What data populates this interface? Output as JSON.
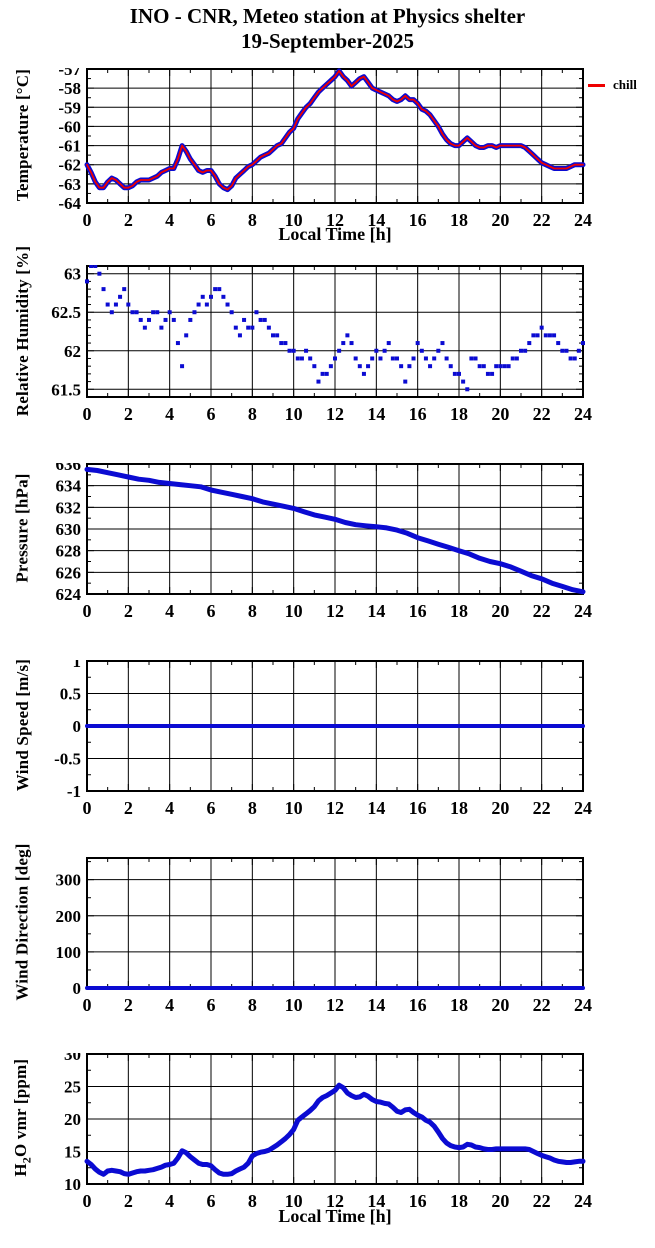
{
  "page": {
    "title_line1": "INO - CNR, Meteo station at Physics shelter",
    "title_line2": "19-September-2025"
  },
  "colors": {
    "background": "#ffffff",
    "frame": "#000000",
    "series_blue": "#0b0bd2",
    "chill_red": "#ee0000"
  },
  "chart_data": [
    {
      "id": "temperature",
      "type": "line",
      "title": "",
      "ylabel": "Temperature [°C]",
      "xlabel": "Local Time [h]",
      "xlim": [
        0,
        24
      ],
      "ylim": [
        -64,
        -57
      ],
      "xticks": [
        0,
        2,
        4,
        6,
        8,
        10,
        12,
        14,
        16,
        18,
        20,
        22,
        24
      ],
      "xtick_labels": [
        "0",
        "2",
        "4",
        "6",
        "8",
        "10",
        "12",
        "14",
        "16",
        "18",
        "20",
        "22",
        "24"
      ],
      "yticks": [
        -57,
        -58,
        -59,
        -60,
        -61,
        -62,
        -63,
        -64
      ],
      "ytick_labels": [
        "-57",
        "-58",
        "-59",
        "-60",
        "-61",
        "-62",
        "-63",
        "-64"
      ],
      "x_minor": 1,
      "y_minor": 0.5,
      "grid": true,
      "legend": {
        "label": "chill",
        "color": "#ee0000",
        "position": "right-of-plot"
      },
      "series": [
        {
          "name": "temperature",
          "color": "#0b0bd2",
          "width": 5,
          "style": "line",
          "x_start": 0,
          "x_step": 0.2,
          "values": [
            -62.0,
            -62.4,
            -62.9,
            -63.2,
            -63.2,
            -62.9,
            -62.7,
            -62.8,
            -63.0,
            -63.2,
            -63.2,
            -63.1,
            -62.9,
            -62.8,
            -62.8,
            -62.8,
            -62.7,
            -62.6,
            -62.4,
            -62.3,
            -62.2,
            -62.2,
            -61.7,
            -61.0,
            -61.3,
            -61.7,
            -62.0,
            -62.3,
            -62.4,
            -62.3,
            -62.3,
            -62.6,
            -63.0,
            -63.2,
            -63.3,
            -63.1,
            -62.7,
            -62.5,
            -62.3,
            -62.1,
            -62.0,
            -61.8,
            -61.6,
            -61.5,
            -61.4,
            -61.2,
            -61.0,
            -60.9,
            -60.6,
            -60.3,
            -60.1,
            -59.6,
            -59.3,
            -59.0,
            -58.8,
            -58.5,
            -58.2,
            -58.0,
            -57.8,
            -57.6,
            -57.4,
            -57.1,
            -57.4,
            -57.6,
            -57.9,
            -57.7,
            -57.5,
            -57.4,
            -57.7,
            -58.0,
            -58.1,
            -58.2,
            -58.3,
            -58.4,
            -58.6,
            -58.7,
            -58.6,
            -58.4,
            -58.6,
            -58.6,
            -58.8,
            -59.1,
            -59.2,
            -59.4,
            -59.7,
            -60.0,
            -60.4,
            -60.7,
            -60.9,
            -61.0,
            -61.0,
            -60.8,
            -60.6,
            -60.8,
            -61.0,
            -61.1,
            -61.1,
            -61.0,
            -61.0,
            -61.1,
            -61.0,
            -61.0,
            -61.0,
            -61.0,
            -61.0,
            -61.0,
            -61.1,
            -61.3,
            -61.5,
            -61.7,
            -61.9,
            -62.0,
            -62.1,
            -62.2,
            -62.2,
            -62.2,
            -62.2,
            -62.1,
            -62.0,
            -62.0,
            -62.0
          ]
        },
        {
          "name": "chill",
          "color": "#ee0000",
          "width": 1.8,
          "style": "line",
          "x_start": 0,
          "x_step": 0.2,
          "values": [
            -62.0,
            -62.4,
            -62.9,
            -63.2,
            -63.2,
            -62.9,
            -62.7,
            -62.8,
            -63.0,
            -63.2,
            -63.2,
            -63.1,
            -62.9,
            -62.8,
            -62.8,
            -62.8,
            -62.7,
            -62.6,
            -62.4,
            -62.3,
            -62.2,
            -62.2,
            -61.7,
            -61.0,
            -61.3,
            -61.7,
            -62.0,
            -62.3,
            -62.4,
            -62.3,
            -62.3,
            -62.6,
            -63.0,
            -63.2,
            -63.3,
            -63.1,
            -62.7,
            -62.5,
            -62.3,
            -62.1,
            -62.0,
            -61.8,
            -61.6,
            -61.5,
            -61.4,
            -61.2,
            -61.0,
            -60.9,
            -60.6,
            -60.3,
            -60.1,
            -59.6,
            -59.3,
            -59.0,
            -58.8,
            -58.5,
            -58.2,
            -58.0,
            -57.8,
            -57.6,
            -57.4,
            -57.1,
            -57.4,
            -57.6,
            -57.9,
            -57.7,
            -57.5,
            -57.4,
            -57.7,
            -58.0,
            -58.1,
            -58.2,
            -58.3,
            -58.4,
            -58.6,
            -58.7,
            -58.6,
            -58.4,
            -58.6,
            -58.6,
            -58.8,
            -59.1,
            -59.2,
            -59.4,
            -59.7,
            -60.0,
            -60.4,
            -60.7,
            -60.9,
            -61.0,
            -61.0,
            -60.8,
            -60.6,
            -60.8,
            -61.0,
            -61.1,
            -61.1,
            -61.0,
            -61.0,
            -61.1,
            -61.0,
            -61.0,
            -61.0,
            -61.0,
            -61.0,
            -61.0,
            -61.1,
            -61.3,
            -61.5,
            -61.7,
            -61.9,
            -62.0,
            -62.1,
            -62.2,
            -62.2,
            -62.2,
            -62.2,
            -62.1,
            -62.0,
            -62.0,
            -62.0
          ]
        }
      ]
    },
    {
      "id": "relative-humidity",
      "type": "scatter",
      "title": "",
      "ylabel": "Relative Humidity [%]",
      "xlabel": "",
      "xlim": [
        0,
        24
      ],
      "ylim": [
        61.4,
        63.1
      ],
      "xticks": [
        0,
        2,
        4,
        6,
        8,
        10,
        12,
        14,
        16,
        18,
        20,
        22,
        24
      ],
      "xtick_labels": [
        "0",
        "2",
        "4",
        "6",
        "8",
        "10",
        "12",
        "14",
        "16",
        "18",
        "20",
        "22",
        "24"
      ],
      "yticks": [
        63,
        62.5,
        62,
        61.5
      ],
      "ytick_labels": [
        "63",
        "62.5",
        "62",
        "61.5"
      ],
      "x_minor": 1,
      "y_minor": 0.1,
      "grid": true,
      "series": [
        {
          "name": "relative-humidity",
          "color": "#0b0bd2",
          "width": 4,
          "style": "points",
          "x_start": 0,
          "x_step": 0.2,
          "values": [
            62.9,
            63.1,
            63.1,
            63.0,
            62.8,
            62.6,
            62.5,
            62.6,
            62.7,
            62.8,
            62.6,
            62.5,
            62.5,
            62.4,
            62.3,
            62.4,
            62.5,
            62.5,
            62.3,
            62.4,
            62.5,
            62.4,
            62.1,
            61.8,
            62.2,
            62.4,
            62.5,
            62.6,
            62.7,
            62.6,
            62.7,
            62.8,
            62.8,
            62.7,
            62.6,
            62.5,
            62.3,
            62.2,
            62.4,
            62.3,
            62.3,
            62.5,
            62.4,
            62.4,
            62.3,
            62.2,
            62.2,
            62.1,
            62.1,
            62.0,
            62.0,
            61.9,
            61.9,
            62.0,
            61.9,
            61.8,
            61.6,
            61.7,
            61.7,
            61.8,
            61.9,
            62.0,
            62.1,
            62.2,
            62.1,
            61.9,
            61.8,
            61.7,
            61.8,
            61.9,
            62.0,
            61.9,
            62.0,
            62.1,
            61.9,
            61.9,
            61.8,
            61.6,
            61.8,
            61.9,
            62.1,
            62.0,
            61.9,
            61.8,
            61.9,
            62.0,
            62.1,
            61.9,
            61.8,
            61.7,
            61.7,
            61.6,
            61.5,
            61.9,
            61.9,
            61.8,
            61.8,
            61.7,
            61.7,
            61.8,
            61.8,
            61.8,
            61.8,
            61.9,
            61.9,
            62.0,
            62.0,
            62.1,
            62.2,
            62.2,
            62.3,
            62.2,
            62.2,
            62.2,
            62.1,
            62.0,
            62.0,
            61.9,
            61.9,
            62.0,
            62.1
          ]
        }
      ]
    },
    {
      "id": "pressure",
      "type": "line",
      "title": "",
      "ylabel": "Pressure [hPa]",
      "xlabel": "",
      "xlim": [
        0,
        24
      ],
      "ylim": [
        624,
        636
      ],
      "xticks": [
        0,
        2,
        4,
        6,
        8,
        10,
        12,
        14,
        16,
        18,
        20,
        22,
        24
      ],
      "xtick_labels": [
        "0",
        "2",
        "4",
        "6",
        "8",
        "10",
        "12",
        "14",
        "16",
        "18",
        "20",
        "22",
        "24"
      ],
      "yticks": [
        636,
        634,
        632,
        630,
        628,
        626,
        624
      ],
      "ytick_labels": [
        "636",
        "634",
        "632",
        "630",
        "628",
        "626",
        "624"
      ],
      "x_minor": 1,
      "y_minor": 1,
      "grid": true,
      "series": [
        {
          "name": "pressure",
          "color": "#0b0bd2",
          "width": 5,
          "style": "line",
          "x_start": 0,
          "x_step": 0.5,
          "values": [
            635.5,
            635.4,
            635.2,
            635.0,
            634.8,
            634.6,
            634.5,
            634.3,
            634.2,
            634.1,
            634.0,
            633.9,
            633.6,
            633.4,
            633.2,
            633.0,
            632.8,
            632.5,
            632.3,
            632.1,
            631.9,
            631.6,
            631.3,
            631.1,
            630.9,
            630.6,
            630.4,
            630.3,
            630.2,
            630.1,
            629.9,
            629.6,
            629.2,
            628.9,
            628.6,
            628.3,
            628.0,
            627.7,
            627.3,
            627.0,
            626.8,
            626.5,
            626.1,
            625.7,
            625.4,
            625.0,
            624.7,
            624.4,
            624.2
          ]
        }
      ]
    },
    {
      "id": "wind-speed",
      "type": "line",
      "title": "",
      "ylabel": "Wind Speed [m/s]",
      "xlabel": "",
      "xlim": [
        0,
        24
      ],
      "ylim": [
        -1,
        1
      ],
      "xticks": [
        0,
        2,
        4,
        6,
        8,
        10,
        12,
        14,
        16,
        18,
        20,
        22,
        24
      ],
      "xtick_labels": [
        "0",
        "2",
        "4",
        "6",
        "8",
        "10",
        "12",
        "14",
        "16",
        "18",
        "20",
        "22",
        "24"
      ],
      "yticks": [
        1,
        0.5,
        0,
        -0.5,
        -1
      ],
      "ytick_labels": [
        "1",
        "0.5",
        "0",
        "-0.5",
        "-1"
      ],
      "x_minor": 1,
      "y_minor": 0.25,
      "grid": true,
      "constant_value": 0,
      "series": [
        {
          "name": "wind-speed",
          "color": "#0b0bd2",
          "width": 4,
          "style": "line",
          "x": [
            0,
            6,
            12,
            18,
            24
          ],
          "values": [
            0,
            0,
            0,
            0,
            0
          ]
        }
      ]
    },
    {
      "id": "wind-direction",
      "type": "line",
      "title": "",
      "ylabel": "Wind Direction [deg]",
      "xlabel": "",
      "xlim": [
        0,
        24
      ],
      "ylim": [
        0,
        360
      ],
      "xticks": [
        0,
        2,
        4,
        6,
        8,
        10,
        12,
        14,
        16,
        18,
        20,
        22,
        24
      ],
      "xtick_labels": [
        "0",
        "2",
        "4",
        "6",
        "8",
        "10",
        "12",
        "14",
        "16",
        "18",
        "20",
        "22",
        "24"
      ],
      "yticks": [
        300,
        200,
        100,
        0
      ],
      "ytick_labels": [
        "300",
        "200",
        "100",
        "0"
      ],
      "x_minor": 1,
      "y_minor": 50,
      "grid": true,
      "constant_value": 0,
      "series": [
        {
          "name": "wind-direction",
          "color": "#0b0bd2",
          "width": 4,
          "style": "line",
          "x": [
            0,
            6,
            12,
            18,
            24
          ],
          "values": [
            0,
            0,
            0,
            0,
            0
          ]
        }
      ]
    },
    {
      "id": "h2o-vmr",
      "type": "line",
      "title": "",
      "ylabel": "H2O vmr [ppm]",
      "ylabel_parts": {
        "base": "H",
        "sub": "2",
        "rest": "O vmr [ppm]"
      },
      "xlabel": "Local Time [h]",
      "xlim": [
        0,
        24
      ],
      "ylim": [
        10,
        30
      ],
      "xticks": [
        0,
        2,
        4,
        6,
        8,
        10,
        12,
        14,
        16,
        18,
        20,
        22,
        24
      ],
      "xtick_labels": [
        "0",
        "2",
        "4",
        "6",
        "8",
        "10",
        "12",
        "14",
        "16",
        "18",
        "20",
        "22",
        "24"
      ],
      "yticks": [
        30,
        25,
        20,
        15,
        10
      ],
      "ytick_labels": [
        "30",
        "25",
        "20",
        "15",
        "10"
      ],
      "x_minor": 1,
      "y_minor": 2.5,
      "grid": true,
      "series": [
        {
          "name": "h2o-vmr",
          "color": "#0b0bd2",
          "width": 5,
          "style": "line",
          "x_start": 0,
          "x_step": 0.2,
          "values": [
            13.5,
            13.0,
            12.3,
            11.8,
            11.5,
            12.0,
            12.1,
            12.0,
            11.9,
            11.6,
            11.5,
            11.7,
            11.9,
            12.0,
            12.0,
            12.1,
            12.2,
            12.4,
            12.6,
            12.9,
            13.0,
            13.2,
            14.0,
            15.1,
            14.8,
            14.2,
            13.7,
            13.2,
            13.0,
            13.0,
            12.8,
            12.2,
            11.7,
            11.5,
            11.5,
            11.6,
            12.0,
            12.3,
            12.6,
            13.2,
            14.3,
            14.7,
            14.9,
            15.0,
            15.2,
            15.6,
            16.0,
            16.5,
            17.0,
            17.6,
            18.4,
            19.8,
            20.3,
            20.8,
            21.3,
            21.9,
            22.8,
            23.3,
            23.6,
            24.0,
            24.4,
            25.2,
            24.8,
            24.0,
            23.6,
            23.3,
            23.4,
            23.8,
            23.5,
            23.0,
            22.7,
            22.6,
            22.4,
            22.3,
            21.8,
            21.2,
            21.0,
            21.4,
            21.5,
            21.0,
            20.6,
            20.3,
            19.8,
            19.5,
            18.9,
            18.0,
            17.0,
            16.3,
            15.9,
            15.7,
            15.6,
            15.7,
            16.1,
            16.0,
            15.7,
            15.6,
            15.4,
            15.3,
            15.3,
            15.4,
            15.4,
            15.4,
            15.4,
            15.4,
            15.4,
            15.4,
            15.4,
            15.3,
            15.0,
            14.7,
            14.4,
            14.2,
            14.0,
            13.7,
            13.5,
            13.4,
            13.3,
            13.3,
            13.4,
            13.5,
            13.5
          ]
        }
      ]
    }
  ]
}
